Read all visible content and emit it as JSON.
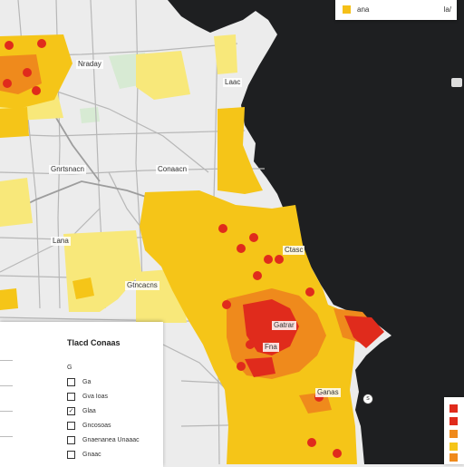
{
  "map": {
    "place_labels": [
      {
        "text": "Nraday"
      },
      {
        "text": "Laac"
      },
      {
        "text": "Gnrtsnacn"
      },
      {
        "text": "Conaacn"
      },
      {
        "text": "Lana"
      },
      {
        "text": "Ctasc"
      },
      {
        "text": "Gtncacns"
      },
      {
        "text": "Gatrar"
      },
      {
        "text": "Fna"
      },
      {
        "text": "Ganas"
      }
    ]
  },
  "legend_top": {
    "label": "ana",
    "right_label": "la/"
  },
  "filter_panel": {
    "title": "Tlacd Conaas",
    "rows": [
      {
        "label": "Ga",
        "checked": false
      },
      {
        "label": "Gva Ioas",
        "checked": false
      },
      {
        "label": "Glaa",
        "checked": true
      },
      {
        "label": "Gncosoas",
        "checked": false
      },
      {
        "label": "Gnaenanea Unaaac",
        "checked": false
      },
      {
        "label": "Gnaac",
        "checked": false
      }
    ],
    "row_marker": "G"
  },
  "colors": {
    "water": "#1e1f21",
    "land": "#ececec",
    "light_yellow": "#f8e87a",
    "yellow": "#f5c518",
    "orange": "#ef8a1c",
    "red": "#e02b1c"
  }
}
